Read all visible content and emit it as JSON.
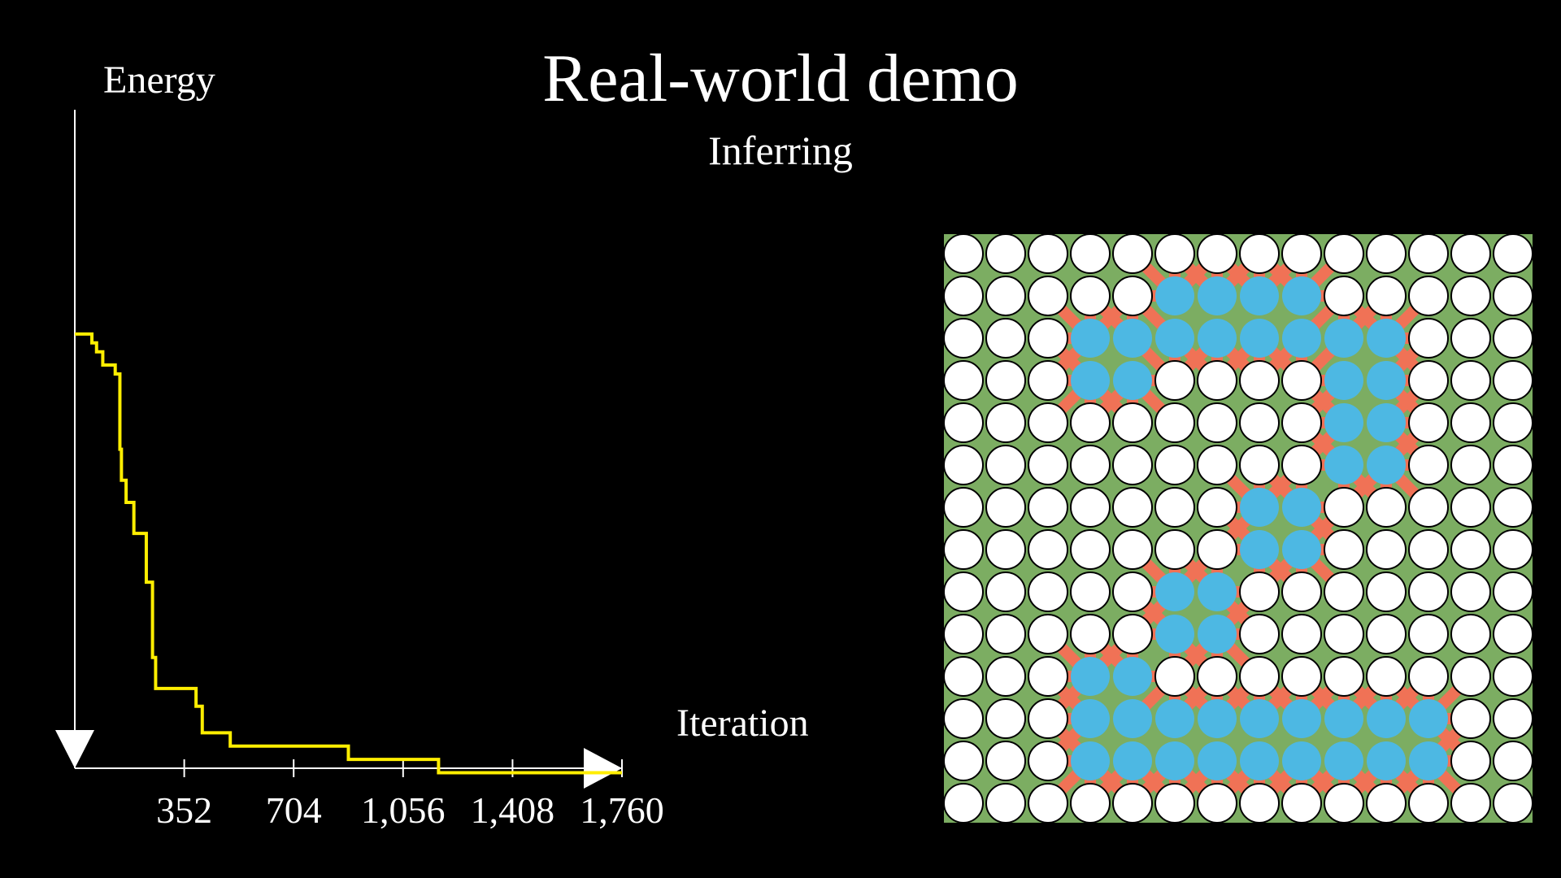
{
  "title": "Real-world demo",
  "status": "Inferring",
  "colors": {
    "background": "#000000",
    "energy_line": "#ffee00",
    "axis": "#ffffff",
    "neuron_on": "#4db8e3",
    "neuron_off": "#ffffff",
    "weight_positive": "#7cad62",
    "weight_negative": "#f07256"
  },
  "chart_data": {
    "type": "line",
    "title": "",
    "xlabel": "Iteration",
    "ylabel": "Energy",
    "x_ticks": [
      352,
      704,
      1056,
      1408,
      1760
    ],
    "x_tick_labels": [
      "352",
      "704",
      "1,056",
      "1,408",
      "1,760"
    ],
    "xlim": [
      0,
      1760
    ],
    "ylim": [
      0,
      1
    ],
    "series": [
      {
        "step": true,
        "x": [
          0,
          55,
          70,
          90,
          130,
          145,
          150,
          165,
          190,
          230,
          250,
          260,
          390,
          410,
          500,
          880,
          1170,
          1760
        ],
        "y": [
          0.98,
          0.96,
          0.94,
          0.91,
          0.89,
          0.72,
          0.65,
          0.6,
          0.53,
          0.42,
          0.25,
          0.18,
          0.14,
          0.08,
          0.05,
          0.02,
          -0.01,
          -0.01
        ]
      }
    ]
  },
  "neuron_grid": {
    "rows": 14,
    "cols": 14,
    "states": [
      "00000000000000",
      "00000111100000",
      "00011111111000",
      "00011000011000",
      "00000000011000",
      "00000000011000",
      "00000001100000",
      "00000001100000",
      "00000110000000",
      "00000110000000",
      "00011000000000",
      "00011111111100",
      "00011111111100",
      "00000000000000"
    ]
  }
}
